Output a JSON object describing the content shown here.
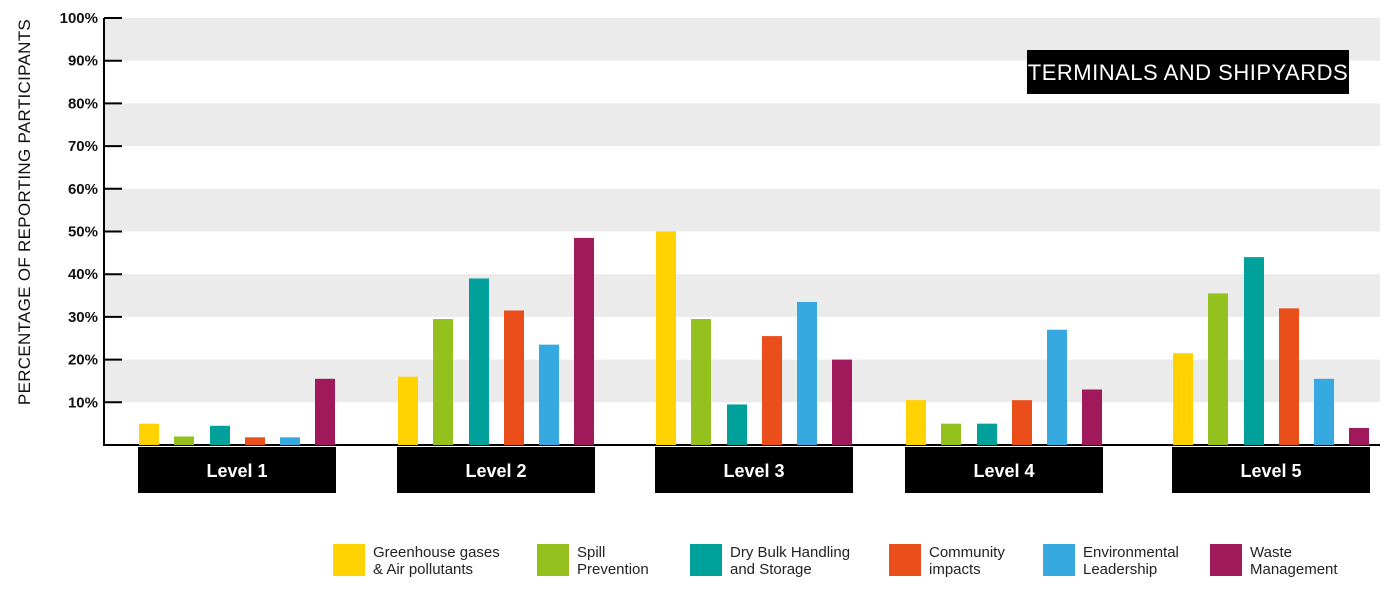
{
  "chart_data": {
    "type": "bar",
    "title": "TERMINALS AND SHIPYARDS",
    "ylabel": "PERCENTAGE OF REPORTING PARTICIPANTS",
    "xlabel": "",
    "ylim": [
      0,
      100
    ],
    "yticks": [
      "10%",
      "20%",
      "30%",
      "40%",
      "50%",
      "60%",
      "70%",
      "80%",
      "90%",
      "100%"
    ],
    "categories": [
      "Level 1",
      "Level 2",
      "Level 3",
      "Level 4",
      "Level 5"
    ],
    "legend_position": "bottom",
    "grid": "alternating horizontal bands",
    "series": [
      {
        "name": "Greenhouse gases\n& Air pollutants",
        "color": "#ffd200",
        "values": [
          5,
          16,
          50,
          10.5,
          21.5
        ]
      },
      {
        "name": "Spill\nPrevention",
        "color": "#95c11f",
        "values": [
          2,
          29.5,
          29.5,
          5,
          35.5
        ]
      },
      {
        "name": "Dry Bulk Handling\nand Storage",
        "color": "#00a19a",
        "values": [
          4.5,
          39,
          9.5,
          5,
          44
        ]
      },
      {
        "name": "Community\nimpacts",
        "color": "#e94e1b",
        "values": [
          1.8,
          31.5,
          25.5,
          10.5,
          32
        ]
      },
      {
        "name": "Environmental\nLeadership",
        "color": "#36a9e1",
        "values": [
          1.8,
          23.5,
          33.5,
          27,
          15.5
        ]
      },
      {
        "name": "Waste\nManagement",
        "color": "#a0195a",
        "values": [
          15.5,
          48.5,
          20,
          13,
          4
        ]
      }
    ]
  }
}
